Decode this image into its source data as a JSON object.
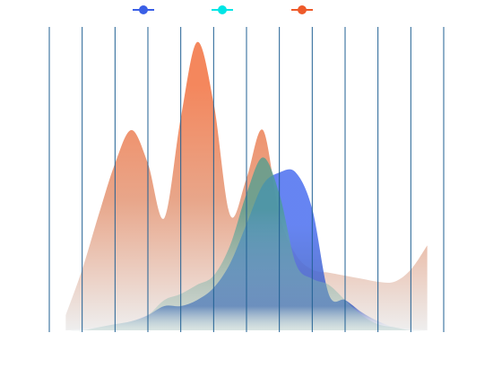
{
  "chart_data": {
    "type": "area",
    "x": [
      0.5,
      1,
      1.5,
      2,
      2.5,
      3,
      3.5,
      4,
      4.5,
      5,
      5.5,
      6,
      6.5,
      7,
      7.5,
      8,
      8.5,
      9,
      9.5,
      10,
      10.5,
      11,
      11.5
    ],
    "xlim": [
      0,
      12
    ],
    "xticks": [
      0,
      1,
      2,
      3,
      4,
      5,
      6,
      7,
      8,
      9,
      10,
      11,
      12
    ],
    "ylim": [
      0,
      100
    ],
    "grid": true,
    "series": [
      {
        "color": "#3a5fe6",
        "values": [
          0,
          0.5,
          1,
          2,
          3,
          5,
          8,
          8,
          10,
          14,
          22,
          35,
          48,
          52,
          52,
          40,
          12,
          10,
          6,
          3,
          1,
          0.5,
          0
        ]
      },
      {
        "color": "#00e5e5",
        "values": [
          0,
          0,
          1,
          2,
          3,
          5,
          10,
          12,
          15,
          18,
          28,
          45,
          57,
          45,
          22,
          17,
          15,
          10,
          5,
          2,
          1,
          0,
          0
        ]
      },
      {
        "color": "#ee5a2a",
        "values": [
          5,
          20,
          38,
          55,
          66,
          55,
          37,
          70,
          95,
          75,
          38,
          50,
          66,
          38,
          25,
          20,
          19,
          18,
          17,
          16,
          16,
          20,
          28
        ]
      }
    ]
  }
}
